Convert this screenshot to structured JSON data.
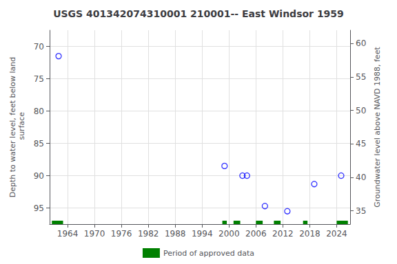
{
  "chart_data": {
    "type": "scatter",
    "title": "USGS 401342074310001 210001-- East Windsor 1959",
    "x": [
      1962,
      1999,
      2003,
      2004,
      2008,
      2013,
      2019,
      2025
    ],
    "values": [
      71.5,
      88.5,
      90.0,
      90.0,
      94.7,
      95.5,
      91.3,
      90.0
    ],
    "color": "#0000ff",
    "marker": "circle_open",
    "xlim": [
      1960.0,
      2027.0
    ],
    "xticks": [
      1964,
      1970,
      1976,
      1982,
      1988,
      1994,
      2000,
      2006,
      2012,
      2018,
      2024
    ],
    "ylim": [
      97.5,
      67.5
    ],
    "yticks": [
      70,
      75,
      80,
      85,
      90,
      95
    ],
    "ylabel": "Depth to water level, feet below land\n surface",
    "y2lim": [
      33.0,
      62.0
    ],
    "y2ticks": [
      35,
      40,
      45,
      50,
      55,
      60
    ],
    "y2label": "Groundwater level above NAVD 1988, feet",
    "grid": true,
    "legend": "bottom",
    "approved_periods": {
      "name": "Period of approved data",
      "color": "#008000",
      "ranges": [
        [
          1960.5,
          1963.0
        ],
        [
          1998.5,
          1999.5
        ],
        [
          2001.0,
          2002.5
        ],
        [
          2006.0,
          2007.5
        ],
        [
          2010.0,
          2011.5
        ],
        [
          2016.5,
          2017.5
        ],
        [
          2024.0,
          2026.5
        ]
      ]
    }
  }
}
